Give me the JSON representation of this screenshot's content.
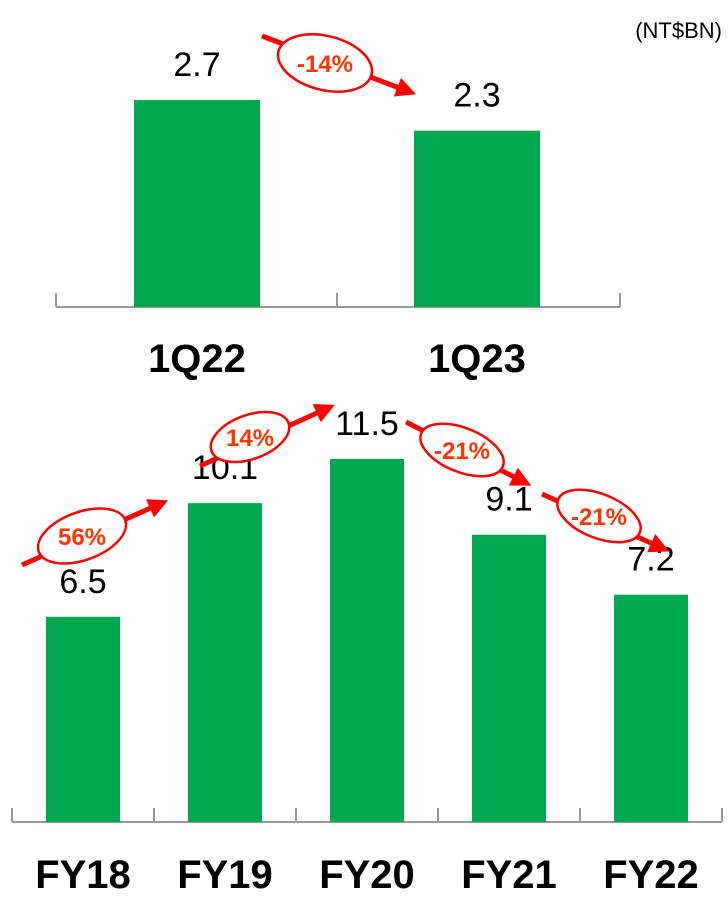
{
  "unit_label": "(NT$BN)",
  "colors": {
    "bar": "#00a84f",
    "arrow": "#ff0000",
    "axis": "#999999",
    "change_text": "#ff3300"
  },
  "chart_data": [
    {
      "type": "bar",
      "categories": [
        "1Q22",
        "1Q23"
      ],
      "values": [
        2.7,
        2.3
      ],
      "data_labels": [
        "2.7",
        "2.3"
      ],
      "ylim": [
        0,
        3.0
      ],
      "grid": false,
      "changes": [
        {
          "label": "-14%",
          "from": "1Q22",
          "to": "1Q23",
          "direction": "down"
        }
      ]
    },
    {
      "type": "bar",
      "categories": [
        "FY18",
        "FY19",
        "FY20",
        "FY21",
        "FY22"
      ],
      "values": [
        6.5,
        10.1,
        11.5,
        9.1,
        7.2
      ],
      "data_labels": [
        "6.5",
        "10.1",
        "11.5",
        "9.1",
        "7.2"
      ],
      "ylim": [
        0,
        14.0
      ],
      "grid": false,
      "changes": [
        {
          "label": "56%",
          "from": "FY18",
          "to": "FY19",
          "direction": "up"
        },
        {
          "label": "14%",
          "from": "FY19",
          "to": "FY20",
          "direction": "up"
        },
        {
          "label": "-21%",
          "from": "FY20",
          "to": "FY21",
          "direction": "down"
        },
        {
          "label": "-21%",
          "from": "FY21",
          "to": "FY22",
          "direction": "down"
        }
      ]
    }
  ]
}
